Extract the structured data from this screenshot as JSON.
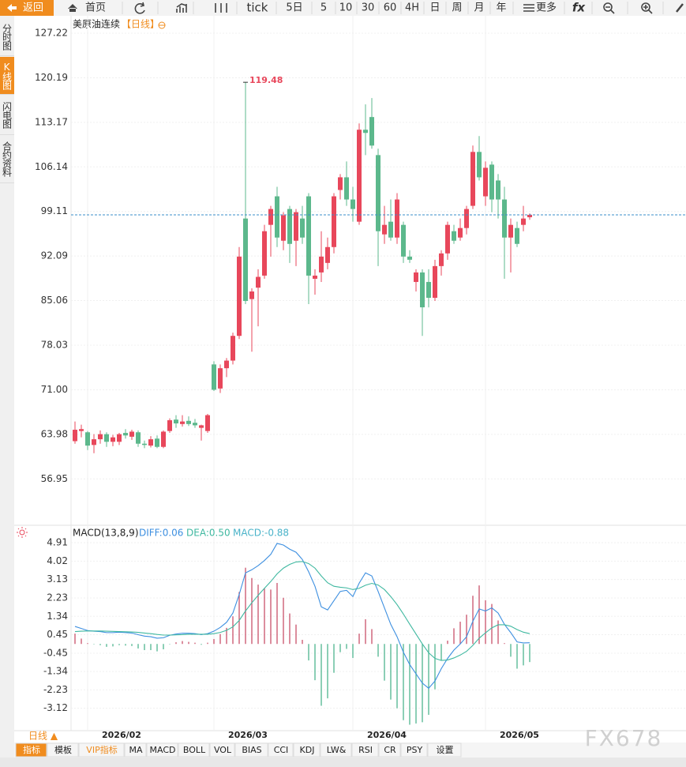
{
  "toolbar": [
    "返回",
    "首页",
    "tick",
    "5日",
    "5",
    "10",
    "30",
    "60",
    "4H",
    "日",
    "周",
    "月",
    "年",
    "更多",
    "fx"
  ],
  "sidebar": [
    "分时图",
    "K线图",
    "闪电图",
    "合约资料"
  ],
  "title": "美原油连续",
  "period_tag": "【日线】",
  "period_button": "日线 ▲",
  "tabs": [
    "指标",
    "模板",
    "VIP指标",
    "MA",
    "MACD",
    "BOLL",
    "VOL",
    "BIAS",
    "CCI",
    "KDJ",
    "LW&",
    "RSI",
    "CR",
    "PSY",
    "设置"
  ],
  "watermark": "FX678",
  "chart_data": [
    {
      "type": "candlestick",
      "up_color": "#e8475b",
      "down_color": "#5cb88c",
      "last_color": "#3a8ec8",
      "ylim": [
        50.26,
        129.96
      ],
      "yticks": [
        127.22,
        120.19,
        113.17,
        106.14,
        99.11,
        92.09,
        85.06,
        78.03,
        {
          "value": 71,
          "label": "71.00"
        },
        63.98,
        56.95
      ],
      "categories": [
        null,
        null,
        "2026/02",
        null,
        null,
        null,
        null,
        null,
        null,
        null,
        null,
        null,
        null,
        null,
        null,
        null,
        null,
        null,
        null,
        null,
        null,
        null,
        "2026/03",
        null,
        null,
        null,
        null,
        null,
        null,
        null,
        null,
        null,
        null,
        null,
        null,
        null,
        null,
        null,
        null,
        null,
        null,
        null,
        null,
        null,
        "2026/04",
        null,
        null,
        null,
        null,
        null,
        null,
        null,
        null,
        null,
        null,
        null,
        null,
        null,
        null,
        null,
        null,
        null,
        null,
        null,
        null,
        "2026/05",
        null,
        null,
        null,
        null,
        null,
        null,
        null
      ],
      "open": [
        62.9,
        64.5,
        64.3,
        62.3,
        63.2,
        64.0,
        62.8,
        62.8,
        64.2,
        63.6,
        64.3,
        62.5,
        62.2,
        63.3,
        62.0,
        64.5,
        66.3,
        65.6,
        66.1,
        65.8,
        65.0,
        64.5,
        75,
        71.2,
        74.4,
        75.6,
        79.5,
        98,
        85.3,
        87.1,
        89,
        97,
        101.5,
        94.5,
        99.5,
        94.5,
        98,
        101.5,
        88.5,
        89.5,
        91,
        93.5,
        102.5,
        104.5,
        101,
        97.5,
        112,
        114,
        108,
        95.5,
        97.5,
        95,
        97,
        92,
        88,
        89.5,
        88,
        85.5,
        90.5,
        92.5,
        96,
        95,
        96.5,
        100,
        108.5,
        101.5,
        106.5,
        104,
        101,
        95,
        96.5,
        97,
        98.2
      ],
      "high": [
        66,
        65.5,
        64.5,
        64,
        64.6,
        64.3,
        63.9,
        64.2,
        64.8,
        64.7,
        64.6,
        63,
        63.7,
        63.8,
        64.6,
        66.5,
        67,
        67,
        66.8,
        66.4,
        65.5,
        67.2,
        75.5,
        75,
        76,
        80,
        93.5,
        119.48,
        87,
        90,
        97,
        100,
        103,
        99,
        100,
        99.5,
        100,
        102,
        90,
        96,
        95,
        102,
        105,
        107,
        103,
        113,
        116,
        117,
        109,
        100,
        101,
        102,
        97.5,
        93,
        90,
        90,
        90,
        91.5,
        93,
        97.5,
        97,
        98,
        100,
        109.5,
        111,
        107,
        107,
        105,
        103,
        98,
        97.5,
        100,
        98.8
      ],
      "low": [
        62.5,
        63.5,
        61.5,
        61,
        62.5,
        62,
        62.1,
        62.3,
        63.3,
        63.1,
        62,
        61.8,
        61.9,
        61.8,
        61.8,
        64.2,
        65,
        65.2,
        65.3,
        65,
        63,
        64.2,
        70.8,
        70.5,
        73,
        75,
        79,
        84.5,
        77,
        81,
        88.5,
        92,
        93.5,
        93,
        91,
        90.5,
        94,
        84.5,
        86,
        88,
        90,
        92.5,
        101,
        100,
        97.5,
        97,
        108,
        109,
        90.5,
        94,
        94.5,
        94,
        91,
        91,
        86.5,
        79.5,
        84,
        85,
        89,
        91.5,
        94,
        94.5,
        95.5,
        99.5,
        104,
        100,
        99,
        98,
        88.5,
        89.5,
        93.5,
        96,
        97.8
      ],
      "close": [
        64.7,
        64.8,
        62.2,
        63.2,
        64.0,
        62.8,
        63.5,
        64.0,
        63.8,
        64.4,
        62.5,
        62.3,
        63.2,
        62.0,
        64.4,
        66.2,
        65.7,
        66.0,
        65.6,
        65.4,
        65.4,
        67,
        71,
        74.4,
        75.6,
        79.5,
        92,
        85,
        86.5,
        88.8,
        96,
        99.5,
        95,
        98.5,
        94,
        99,
        95,
        89,
        89,
        92,
        93.5,
        101.5,
        104.5,
        101,
        99.5,
        112,
        111.5,
        109.5,
        96,
        97,
        95,
        101,
        92,
        91.5,
        89.5,
        84,
        85.5,
        90.5,
        92.5,
        97,
        94.5,
        96.5,
        99.5,
        108.5,
        104.5,
        106,
        101,
        101,
        95,
        97,
        94,
        98,
        98.58
      ]
    },
    {
      "type": "macd",
      "title": "MACD(13,8,9)",
      "legend": [
        "DIFF:0.06",
        "DEA:0.50",
        "MACD:-0.88"
      ],
      "diff_color": "#3d8fe0",
      "dea_color": "#3fb8a0",
      "macd_color": "#4ab3c9",
      "up_color": "#c9506a",
      "down_color": "#4fb58f",
      "ylim": [
        -4.17,
        5.03
      ],
      "yticks": [
        4.91,
        4.02,
        3.13,
        2.23,
        1.34,
        0.45,
        -0.45,
        -1.34,
        -2.23,
        -3.12
      ],
      "diff": [
        0.85,
        0.75,
        0.65,
        0.62,
        0.6,
        0.55,
        0.55,
        0.57,
        0.55,
        0.53,
        0.45,
        0.38,
        0.35,
        0.28,
        0.3,
        0.42,
        0.48,
        0.52,
        0.52,
        0.5,
        0.45,
        0.5,
        0.62,
        0.8,
        1.05,
        1.5,
        2.4,
        3.45,
        3.6,
        3.8,
        4.05,
        4.35,
        4.88,
        4.8,
        4.6,
        4.45,
        4.1,
        3.5,
        2.8,
        1.8,
        1.65,
        2.1,
        2.55,
        2.6,
        2.3,
        2.95,
        3.45,
        3.3,
        2.55,
        1.75,
        0.95,
        0.35,
        -0.4,
        -1.0,
        -1.45,
        -1.9,
        -2.15,
        -1.8,
        -1.2,
        -0.7,
        -0.3,
        0.0,
        0.35,
        1.1,
        1.7,
        1.6,
        1.75,
        1.5,
        0.95,
        0.55,
        0.1,
        0.05,
        0.06
      ],
      "dea": [
        0.6,
        0.62,
        0.63,
        0.63,
        0.63,
        0.62,
        0.61,
        0.6,
        0.59,
        0.58,
        0.56,
        0.53,
        0.5,
        0.46,
        0.43,
        0.43,
        0.44,
        0.45,
        0.47,
        0.47,
        0.47,
        0.47,
        0.5,
        0.56,
        0.66,
        0.83,
        1.14,
        1.6,
        2.0,
        2.36,
        2.7,
        3.03,
        3.4,
        3.68,
        3.86,
        3.98,
        4.0,
        3.9,
        3.68,
        3.3,
        2.97,
        2.8,
        2.75,
        2.72,
        2.64,
        2.7,
        2.85,
        2.94,
        2.86,
        2.64,
        2.3,
        1.91,
        1.45,
        0.96,
        0.48,
        0.0,
        -0.43,
        -0.7,
        -0.8,
        -0.78,
        -0.68,
        -0.54,
        -0.36,
        -0.07,
        0.28,
        0.54,
        0.78,
        0.93,
        0.93,
        0.86,
        0.7,
        0.57,
        0.5
      ],
      "macd": [
        0.5,
        0.26,
        0.04,
        -0.02,
        -0.06,
        -0.14,
        -0.12,
        -0.06,
        -0.08,
        -0.1,
        -0.22,
        -0.3,
        -0.3,
        -0.36,
        -0.26,
        -0.02,
        0.08,
        0.14,
        0.1,
        0.06,
        -0.04,
        0.06,
        0.24,
        0.48,
        0.78,
        1.34,
        2.52,
        3.7,
        3.2,
        2.88,
        2.7,
        2.64,
        2.96,
        2.24,
        1.48,
        0.94,
        0.2,
        -0.8,
        -1.76,
        -3.0,
        -2.64,
        -1.4,
        -0.4,
        -0.24,
        -0.68,
        0.5,
        1.2,
        0.72,
        -0.62,
        -1.78,
        -2.7,
        -3.12,
        -3.7,
        -3.92,
        -3.86,
        -3.8,
        -3.44,
        -2.2,
        -0.8,
        0.16,
        0.76,
        1.08,
        1.42,
        2.34,
        2.84,
        2.12,
        1.94,
        1.14,
        0.04,
        -0.62,
        -1.2,
        -1.04,
        -0.88
      ]
    }
  ]
}
